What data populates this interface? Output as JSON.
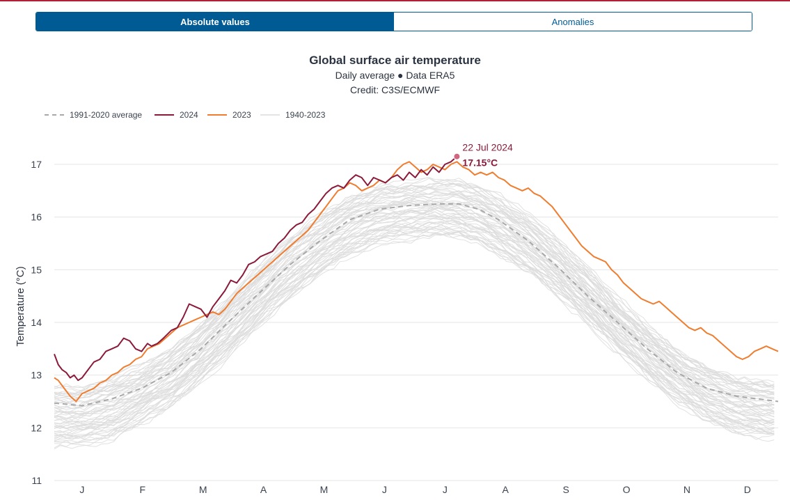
{
  "toggle": {
    "active_label": "Absolute values",
    "inactive_label": "Anomalies"
  },
  "colors": {
    "accent": "#005b94",
    "y2024": "#8b1a3a",
    "y2023": "#f07d2f",
    "history": "#dcdcdc",
    "average": "#a8a8a8"
  },
  "chart_data": {
    "type": "line",
    "title": "Global surface air temperature",
    "subtitle": "Daily average ● Data ERA5",
    "credit": "Credit: C3S/ECMWF",
    "ylabel": "Temperature (°C)",
    "xlabel": "",
    "ylim": [
      11,
      17.45
    ],
    "x_unit": "day of year",
    "xlim": [
      1,
      366
    ],
    "yticks": [
      11,
      12,
      13,
      14,
      15,
      16,
      17
    ],
    "month_ticks": [
      "J",
      "F",
      "M",
      "A",
      "M",
      "J",
      "J",
      "A",
      "S",
      "O",
      "N",
      "D"
    ],
    "grid": "horizontal",
    "legend_position": "top-left",
    "legend": [
      "1991-2020 average",
      "2024",
      "2023",
      "1940-2023"
    ],
    "annotation": {
      "date": "22 Jul 2024",
      "value_label": "17.15°C",
      "x": 204,
      "y": 17.15
    },
    "series": [
      {
        "name": "1991-2020 average",
        "style": "dashed",
        "x": [
          1,
          15,
          30,
          45,
          60,
          75,
          90,
          105,
          120,
          135,
          150,
          165,
          180,
          195,
          205,
          215,
          225,
          240,
          255,
          270,
          285,
          300,
          315,
          330,
          345,
          366
        ],
        "values": [
          12.47,
          12.42,
          12.55,
          12.75,
          13.05,
          13.5,
          14.05,
          14.58,
          15.1,
          15.55,
          15.95,
          16.15,
          16.22,
          16.25,
          16.25,
          16.15,
          15.95,
          15.55,
          15.05,
          14.5,
          14.0,
          13.5,
          13.05,
          12.75,
          12.6,
          12.5
        ]
      },
      {
        "name": "2024",
        "x": [
          1,
          3,
          5,
          7,
          9,
          11,
          13,
          15,
          17,
          19,
          21,
          24,
          27,
          30,
          33,
          36,
          39,
          42,
          45,
          48,
          50,
          53,
          56,
          60,
          63,
          66,
          69,
          72,
          75,
          78,
          81,
          84,
          87,
          90,
          93,
          96,
          99,
          102,
          105,
          108,
          111,
          114,
          117,
          120,
          123,
          126,
          129,
          132,
          135,
          138,
          141,
          144,
          147,
          150,
          153,
          156,
          159,
          162,
          165,
          168,
          171,
          174,
          177,
          180,
          183,
          186,
          189,
          192,
          195,
          198,
          201,
          204
        ],
        "values": [
          13.4,
          13.2,
          13.1,
          13.05,
          12.95,
          13.0,
          12.9,
          12.95,
          13.05,
          13.15,
          13.25,
          13.3,
          13.45,
          13.5,
          13.55,
          13.7,
          13.65,
          13.5,
          13.45,
          13.6,
          13.55,
          13.6,
          13.7,
          13.85,
          13.9,
          14.1,
          14.35,
          14.3,
          14.25,
          14.1,
          14.3,
          14.45,
          14.6,
          14.8,
          14.75,
          14.9,
          15.1,
          15.15,
          15.25,
          15.3,
          15.35,
          15.5,
          15.6,
          15.75,
          15.85,
          15.9,
          16.05,
          16.15,
          16.3,
          16.45,
          16.55,
          16.6,
          16.55,
          16.7,
          16.8,
          16.75,
          16.6,
          16.75,
          16.7,
          16.65,
          16.75,
          16.8,
          16.7,
          16.85,
          16.75,
          16.9,
          16.8,
          16.95,
          16.85,
          17.0,
          17.05,
          17.15
        ]
      },
      {
        "name": "2023",
        "x": [
          1,
          3,
          6,
          9,
          12,
          15,
          18,
          21,
          24,
          27,
          30,
          33,
          36,
          39,
          42,
          45,
          48,
          51,
          54,
          57,
          60,
          63,
          66,
          69,
          72,
          75,
          78,
          81,
          84,
          87,
          90,
          93,
          96,
          99,
          102,
          105,
          108,
          111,
          114,
          117,
          120,
          123,
          126,
          129,
          132,
          135,
          138,
          141,
          144,
          147,
          150,
          153,
          156,
          159,
          162,
          165,
          168,
          171,
          174,
          177,
          180,
          183,
          186,
          189,
          192,
          195,
          198,
          201,
          204,
          207,
          210,
          213,
          216,
          219,
          222,
          225,
          228,
          231,
          234,
          237,
          240,
          243,
          246,
          249,
          252,
          255,
          258,
          261,
          264,
          267,
          270,
          273,
          276,
          279,
          282,
          285,
          288,
          291,
          294,
          297,
          300,
          303,
          306,
          309,
          312,
          315,
          318,
          321,
          324,
          327,
          330,
          333,
          336,
          339,
          342,
          345,
          348,
          351,
          354,
          357,
          360,
          363,
          366
        ],
        "values": [
          12.95,
          12.9,
          12.75,
          12.6,
          12.5,
          12.65,
          12.7,
          12.75,
          12.85,
          12.9,
          13.0,
          13.05,
          13.15,
          13.2,
          13.3,
          13.35,
          13.5,
          13.55,
          13.6,
          13.7,
          13.8,
          13.9,
          13.95,
          14.0,
          14.05,
          14.1,
          14.15,
          14.2,
          14.15,
          14.25,
          14.4,
          14.55,
          14.65,
          14.75,
          14.85,
          14.95,
          15.05,
          15.15,
          15.25,
          15.35,
          15.45,
          15.55,
          15.65,
          15.75,
          15.9,
          16.05,
          16.2,
          16.35,
          16.5,
          16.55,
          16.65,
          16.6,
          16.5,
          16.55,
          16.6,
          16.7,
          16.65,
          16.75,
          16.9,
          17.0,
          17.05,
          16.95,
          16.85,
          16.9,
          17.0,
          16.95,
          16.9,
          17.0,
          17.05,
          16.95,
          16.9,
          16.8,
          16.85,
          16.8,
          16.85,
          16.75,
          16.7,
          16.6,
          16.55,
          16.5,
          16.55,
          16.45,
          16.4,
          16.3,
          16.2,
          16.05,
          15.9,
          15.75,
          15.6,
          15.45,
          15.35,
          15.25,
          15.2,
          15.15,
          15.0,
          14.9,
          14.75,
          14.65,
          14.55,
          14.45,
          14.4,
          14.35,
          14.4,
          14.3,
          14.2,
          14.1,
          14.0,
          13.9,
          13.85,
          13.9,
          13.8,
          13.75,
          13.65,
          13.55,
          13.45,
          13.35,
          13.3,
          13.35,
          13.45,
          13.5,
          13.55,
          13.5,
          13.45
        ]
      },
      {
        "name": "1940-2023",
        "style": "ensemble",
        "range_low": [
          11.55,
          11.55,
          11.7,
          11.95,
          12.3,
          12.75,
          13.3,
          13.85,
          14.35,
          14.8,
          15.15,
          15.4,
          15.5,
          15.55,
          15.5,
          15.4,
          15.2,
          14.85,
          14.4,
          13.9,
          13.35,
          12.85,
          12.4,
          12.05,
          11.8,
          11.7
        ],
        "range_high": [
          12.9,
          12.9,
          13.05,
          13.3,
          13.65,
          14.1,
          14.65,
          15.2,
          15.75,
          16.15,
          16.5,
          16.7,
          16.75,
          16.8,
          16.8,
          16.7,
          16.5,
          16.15,
          15.65,
          15.1,
          14.55,
          14.05,
          13.6,
          13.25,
          13.05,
          12.95
        ],
        "range_x": [
          1,
          15,
          30,
          45,
          60,
          75,
          90,
          105,
          120,
          135,
          150,
          165,
          180,
          195,
          205,
          215,
          225,
          240,
          255,
          270,
          285,
          300,
          315,
          330,
          345,
          366
        ],
        "count": 84
      }
    ]
  }
}
